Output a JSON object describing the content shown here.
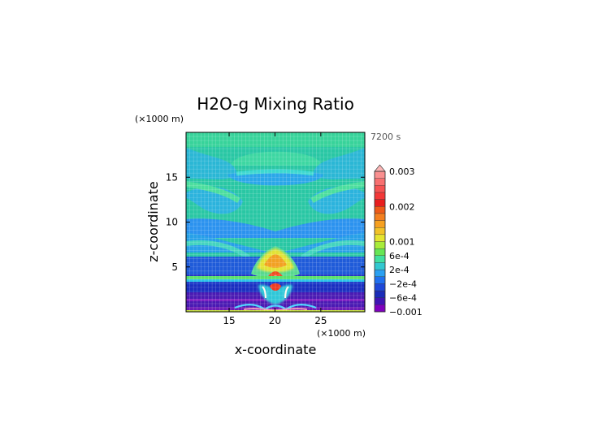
{
  "chart_data": {
    "type": "heatmap",
    "title": "H2O-g Mixing Ratio",
    "time_label": "7200 s",
    "xlabel": "x-coordinate",
    "ylabel": "z-coordinate",
    "x_scale_note": "(×1000 m)",
    "y_scale_note": "(×1000 m)",
    "xlim": [
      10.3,
      29.8
    ],
    "ylim": [
      0,
      20
    ],
    "x_ticks": [
      {
        "value": 15,
        "label": "15"
      },
      {
        "value": 20,
        "label": "20"
      },
      {
        "value": 25,
        "label": "25"
      }
    ],
    "y_ticks": [
      {
        "value": 5,
        "label": "5"
      },
      {
        "value": 10,
        "label": "10"
      },
      {
        "value": 15,
        "label": "15"
      }
    ],
    "colorbar": {
      "levels": [
        -0.001,
        -0.0008,
        -0.0006,
        -0.0004,
        -0.0002,
        0,
        0.0002,
        0.0004,
        0.0006,
        0.0008,
        0.001,
        0.0012,
        0.0014,
        0.0016,
        0.0018,
        0.002,
        0.0022,
        0.0024,
        0.0026,
        0.0028,
        0.003
      ],
      "colors": [
        "#7f00bf",
        "#4015b4",
        "#1a2cb8",
        "#1e48d9",
        "#2070f0",
        "#2aa0f2",
        "#32c8d0",
        "#40e0a0",
        "#66e655",
        "#a8ec3a",
        "#e6e430",
        "#f2c228",
        "#f6a020",
        "#f47f1f",
        "#ee5a18",
        "#e81e1e",
        "#f33838",
        "#f65252",
        "#f87070",
        "#fa9090",
        "#fbb6b6"
      ],
      "labels": [
        {
          "value": 0.003,
          "label": "0.003"
        },
        {
          "value": 0.002,
          "label": "0.002"
        },
        {
          "value": 0.001,
          "label": "0.001"
        },
        {
          "value": 0.0006,
          "label": "6e-4"
        },
        {
          "value": 0.0002,
          "label": "2e-4"
        },
        {
          "value": -0.0002,
          "label": "−2e-4"
        },
        {
          "value": -0.0006,
          "label": "−6e-4"
        },
        {
          "value": -0.001,
          "label": "−0.001"
        }
      ]
    }
  }
}
